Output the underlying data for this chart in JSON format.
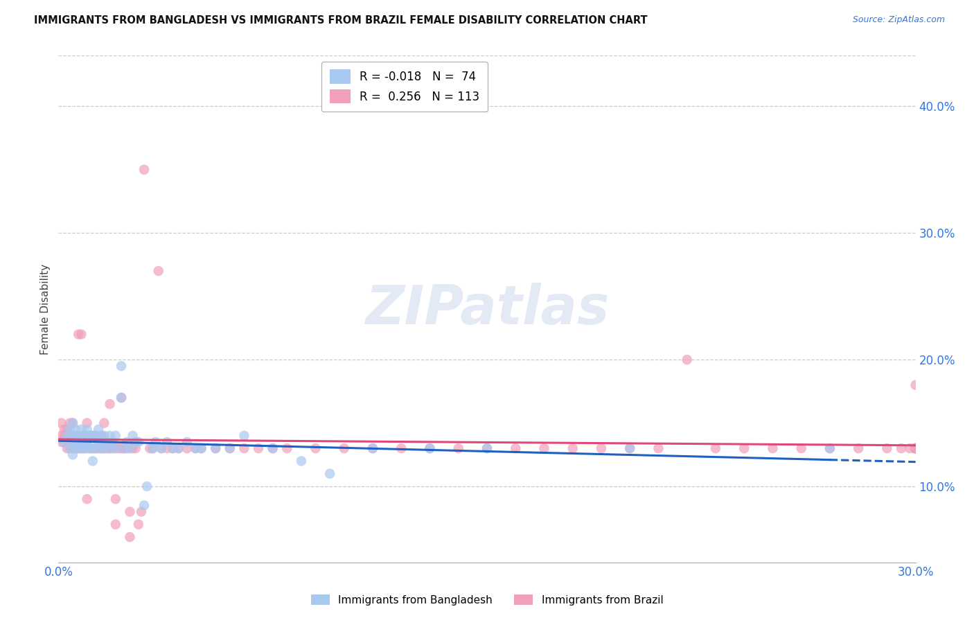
{
  "title": "IMMIGRANTS FROM BANGLADESH VS IMMIGRANTS FROM BRAZIL FEMALE DISABILITY CORRELATION CHART",
  "source": "Source: ZipAtlas.com",
  "ylabel": "Female Disability",
  "xlim": [
    0.0,
    0.3
  ],
  "ylim": [
    0.04,
    0.44
  ],
  "yticks": [
    0.1,
    0.2,
    0.3,
    0.4
  ],
  "ytick_labels": [
    "10.0%",
    "20.0%",
    "30.0%",
    "40.0%"
  ],
  "xtick_positions": [
    0.0,
    0.3
  ],
  "xtick_labels": [
    "0.0%",
    "30.0%"
  ],
  "color_bangladesh": "#a8c8f0",
  "color_brazil": "#f0a0b8",
  "line_color_bangladesh": "#2060c0",
  "line_color_brazil": "#e04878",
  "legend1_r": "-0.018",
  "legend1_n": "74",
  "legend2_r": "0.256",
  "legend2_n": "113",
  "bangladesh_x": [
    0.002,
    0.003,
    0.004,
    0.004,
    0.005,
    0.005,
    0.005,
    0.005,
    0.006,
    0.006,
    0.006,
    0.006,
    0.007,
    0.007,
    0.007,
    0.008,
    0.008,
    0.008,
    0.009,
    0.009,
    0.009,
    0.01,
    0.01,
    0.01,
    0.01,
    0.011,
    0.011,
    0.012,
    0.012,
    0.012,
    0.013,
    0.013,
    0.014,
    0.014,
    0.015,
    0.015,
    0.016,
    0.016,
    0.017,
    0.018,
    0.018,
    0.019,
    0.02,
    0.02,
    0.022,
    0.022,
    0.023,
    0.024,
    0.025,
    0.026,
    0.027,
    0.028,
    0.03,
    0.031,
    0.033,
    0.034,
    0.036,
    0.038,
    0.04,
    0.042,
    0.045,
    0.048,
    0.05,
    0.055,
    0.06,
    0.065,
    0.075,
    0.085,
    0.095,
    0.11,
    0.13,
    0.15,
    0.2,
    0.27
  ],
  "bangladesh_y": [
    0.135,
    0.14,
    0.13,
    0.145,
    0.125,
    0.135,
    0.14,
    0.15,
    0.13,
    0.135,
    0.14,
    0.145,
    0.13,
    0.135,
    0.14,
    0.13,
    0.135,
    0.145,
    0.13,
    0.135,
    0.14,
    0.13,
    0.135,
    0.14,
    0.145,
    0.13,
    0.14,
    0.12,
    0.13,
    0.14,
    0.13,
    0.14,
    0.135,
    0.145,
    0.13,
    0.14,
    0.13,
    0.14,
    0.135,
    0.13,
    0.14,
    0.135,
    0.13,
    0.14,
    0.17,
    0.195,
    0.13,
    0.135,
    0.13,
    0.14,
    0.135,
    0.135,
    0.085,
    0.1,
    0.13,
    0.135,
    0.13,
    0.135,
    0.13,
    0.13,
    0.135,
    0.13,
    0.13,
    0.13,
    0.13,
    0.14,
    0.13,
    0.12,
    0.11,
    0.13,
    0.13,
    0.13,
    0.13,
    0.13
  ],
  "brazil_x": [
    0.001,
    0.001,
    0.001,
    0.002,
    0.002,
    0.002,
    0.003,
    0.003,
    0.003,
    0.003,
    0.004,
    0.004,
    0.004,
    0.005,
    0.005,
    0.005,
    0.006,
    0.006,
    0.007,
    0.007,
    0.007,
    0.008,
    0.008,
    0.008,
    0.009,
    0.009,
    0.01,
    0.01,
    0.01,
    0.011,
    0.011,
    0.012,
    0.012,
    0.013,
    0.013,
    0.014,
    0.015,
    0.015,
    0.016,
    0.016,
    0.017,
    0.018,
    0.018,
    0.019,
    0.02,
    0.02,
    0.021,
    0.022,
    0.022,
    0.023,
    0.024,
    0.025,
    0.025,
    0.026,
    0.027,
    0.028,
    0.029,
    0.03,
    0.032,
    0.033,
    0.035,
    0.036,
    0.038,
    0.04,
    0.042,
    0.045,
    0.048,
    0.05,
    0.055,
    0.06,
    0.065,
    0.07,
    0.075,
    0.08,
    0.09,
    0.1,
    0.11,
    0.12,
    0.13,
    0.14,
    0.15,
    0.16,
    0.17,
    0.18,
    0.19,
    0.2,
    0.21,
    0.22,
    0.23,
    0.24,
    0.25,
    0.26,
    0.27,
    0.28,
    0.29,
    0.295,
    0.298,
    0.3,
    0.3,
    0.3,
    0.3,
    0.3,
    0.3,
    0.3,
    0.3,
    0.3,
    0.3,
    0.3,
    0.3,
    0.3,
    0.3,
    0.3,
    0.3
  ],
  "brazil_y": [
    0.135,
    0.14,
    0.15,
    0.135,
    0.14,
    0.145,
    0.13,
    0.135,
    0.14,
    0.145,
    0.13,
    0.14,
    0.15,
    0.13,
    0.135,
    0.15,
    0.13,
    0.14,
    0.13,
    0.135,
    0.22,
    0.13,
    0.14,
    0.22,
    0.13,
    0.14,
    0.09,
    0.135,
    0.15,
    0.13,
    0.14,
    0.13,
    0.14,
    0.13,
    0.14,
    0.13,
    0.13,
    0.14,
    0.13,
    0.15,
    0.13,
    0.13,
    0.165,
    0.13,
    0.07,
    0.09,
    0.13,
    0.13,
    0.17,
    0.13,
    0.13,
    0.06,
    0.08,
    0.13,
    0.13,
    0.07,
    0.08,
    0.35,
    0.13,
    0.13,
    0.27,
    0.13,
    0.13,
    0.13,
    0.13,
    0.13,
    0.13,
    0.13,
    0.13,
    0.13,
    0.13,
    0.13,
    0.13,
    0.13,
    0.13,
    0.13,
    0.13,
    0.13,
    0.13,
    0.13,
    0.13,
    0.13,
    0.13,
    0.13,
    0.13,
    0.13,
    0.13,
    0.2,
    0.13,
    0.13,
    0.13,
    0.13,
    0.13,
    0.13,
    0.13,
    0.13,
    0.13,
    0.13,
    0.13,
    0.13,
    0.13,
    0.13,
    0.13,
    0.13,
    0.13,
    0.13,
    0.13,
    0.13,
    0.13,
    0.13,
    0.13,
    0.13,
    0.18
  ]
}
